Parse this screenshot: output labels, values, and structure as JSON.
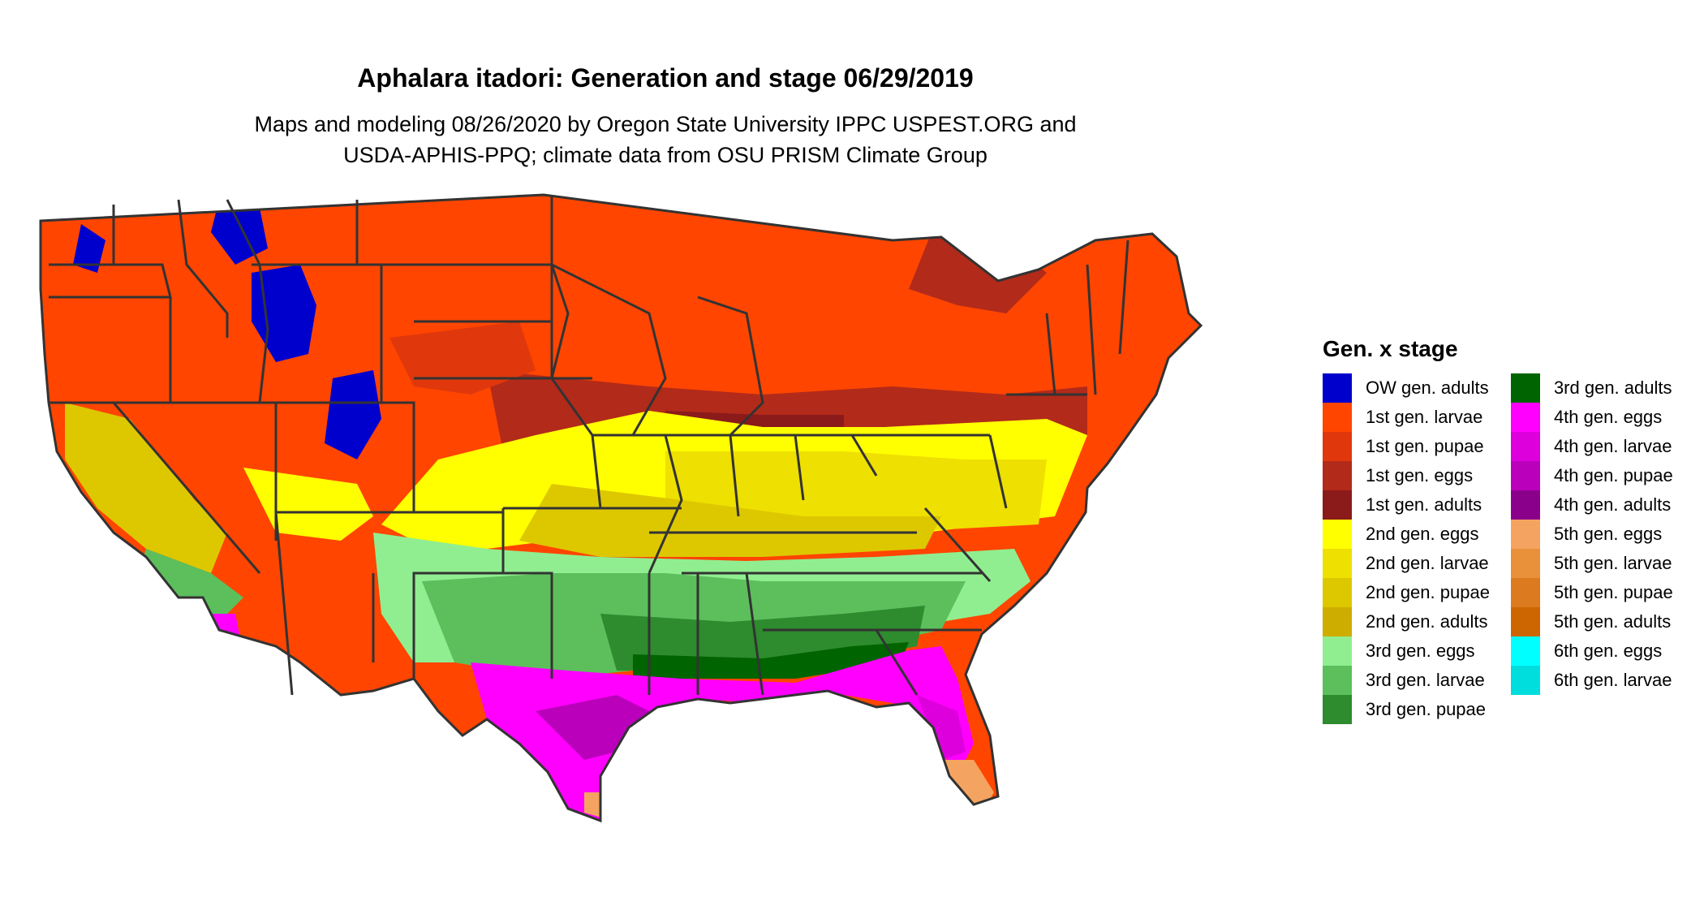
{
  "title": "Aphalara itadori: Generation and stage 06/29/2019",
  "subtitle": {
    "line1": "Maps and modeling 08/26/2020 by Oregon State University IPPC USPEST.ORG and",
    "line2": "USDA-APHIS-PPQ; climate data from OSU PRISM Climate Group"
  },
  "legend": {
    "title": "Gen. x stage",
    "columns": [
      [
        {
          "label": "OW gen. adults",
          "color": "#0000CD"
        },
        {
          "label": "1st gen. larvae",
          "color": "#FF4500"
        },
        {
          "label": "1st gen. pupae",
          "color": "#E0380C"
        },
        {
          "label": "1st gen. eggs",
          "color": "#B22A1A"
        },
        {
          "label": "1st gen. adults",
          "color": "#8B1A1A"
        },
        {
          "label": "2nd gen. eggs",
          "color": "#FFFF00"
        },
        {
          "label": "2nd gen. larvae",
          "color": "#EEE000"
        },
        {
          "label": "2nd gen. pupae",
          "color": "#DDC800"
        },
        {
          "label": "2nd gen. adults",
          "color": "#CDAD00"
        },
        {
          "label": "3rd gen. eggs",
          "color": "#90EE90"
        },
        {
          "label": "3rd gen. larvae",
          "color": "#5CBF5C"
        },
        {
          "label": "3rd gen. pupae",
          "color": "#2E8B2E"
        }
      ],
      [
        {
          "label": "3rd gen. adults",
          "color": "#006400"
        },
        {
          "label": "4th gen. eggs",
          "color": "#FF00FF"
        },
        {
          "label": "4th gen. larvae",
          "color": "#DD00DD"
        },
        {
          "label": "4th gen. pupae",
          "color": "#BB00BB"
        },
        {
          "label": "4th gen. adults",
          "color": "#8B008B"
        },
        {
          "label": "5th gen. eggs",
          "color": "#F4A460"
        },
        {
          "label": "5th gen. larvae",
          "color": "#E8903A"
        },
        {
          "label": "5th gen. pupae",
          "color": "#DC7A20"
        },
        {
          "label": "5th gen. adults",
          "color": "#CD6600"
        },
        {
          "label": "6th gen. eggs",
          "color": "#00FFFF"
        },
        {
          "label": "6th gen. larvae",
          "color": "#00DDDD"
        }
      ]
    ]
  },
  "colors": {
    "state_border": "#333333",
    "background": "#ffffff"
  }
}
